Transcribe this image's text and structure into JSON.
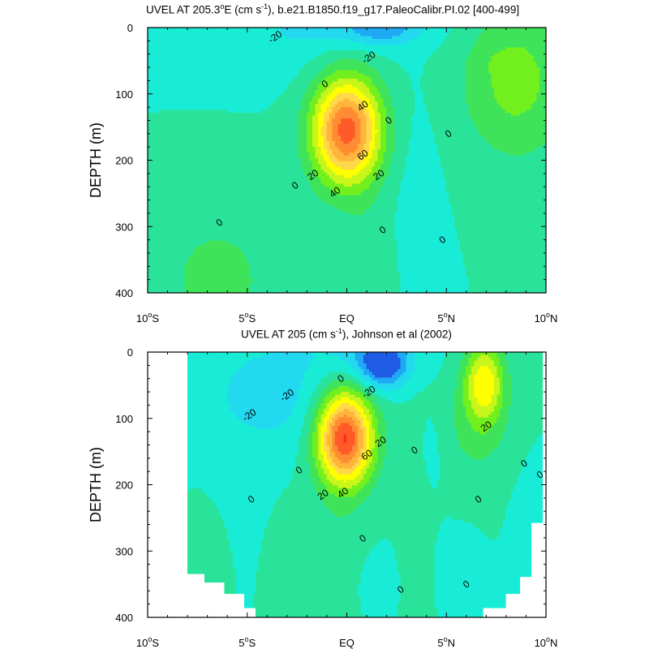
{
  "chart_data": [
    {
      "type": "heatmap",
      "subtype": "filled-contour",
      "title_parts": [
        "UVEL AT 205.3",
        "o",
        "E (cm s",
        "-1",
        "), b.e21.B1850.f19_g17.PaleoCalibr.PI.02 [400-499]"
      ],
      "ylabel": "DEPTH (m)",
      "ylim": [
        400,
        0
      ],
      "xlim": [
        -10,
        10
      ],
      "x_ticks": [
        {
          "v": -10,
          "n": "10",
          "s": "o",
          "h": "S"
        },
        {
          "v": -5,
          "n": "5",
          "s": "o",
          "h": "S"
        },
        {
          "v": 0,
          "n": "EQ",
          "s": "",
          "h": ""
        },
        {
          "v": 5,
          "n": "5",
          "s": "o",
          "h": "N"
        },
        {
          "v": 10,
          "n": "10",
          "s": "o",
          "h": "N"
        }
      ],
      "y_ticks": [
        "0",
        "100",
        "200",
        "300",
        "400"
      ],
      "contour_interval": 10,
      "contour_labels": [
        {
          "text": "-20",
          "x": -3.6,
          "y": 14
        },
        {
          "text": "-20",
          "x": 1.1,
          "y": 45
        },
        {
          "text": "0",
          "x": -1.1,
          "y": 85
        },
        {
          "text": "40",
          "x": 0.8,
          "y": 118
        },
        {
          "text": "0",
          "x": 2.1,
          "y": 140
        },
        {
          "text": "0",
          "x": 5.1,
          "y": 160
        },
        {
          "text": "60",
          "x": 0.8,
          "y": 192
        },
        {
          "text": "20",
          "x": -1.7,
          "y": 222
        },
        {
          "text": "20",
          "x": 1.6,
          "y": 222
        },
        {
          "text": "0",
          "x": -2.6,
          "y": 238
        },
        {
          "text": "40",
          "x": -0.6,
          "y": 248
        },
        {
          "text": "0",
          "x": -6.4,
          "y": 294
        },
        {
          "text": "0",
          "x": 1.8,
          "y": 305
        },
        {
          "text": "0",
          "x": 4.8,
          "y": 320
        }
      ]
    },
    {
      "type": "heatmap",
      "subtype": "filled-contour",
      "title_parts": [
        "UVEL AT 205 (cm s",
        "-1",
        "), Johnson et al (2002)"
      ],
      "ylabel": "DEPTH (m)",
      "ylim": [
        400,
        0
      ],
      "xlim": [
        -10,
        10
      ],
      "x_ticks": [
        {
          "v": -10,
          "n": "10",
          "s": "o",
          "h": "S"
        },
        {
          "v": -5,
          "n": "5",
          "s": "o",
          "h": "S"
        },
        {
          "v": 0,
          "n": "EQ",
          "s": "",
          "h": ""
        },
        {
          "v": 5,
          "n": "5",
          "s": "o",
          "h": "N"
        },
        {
          "v": 10,
          "n": "10",
          "s": "o",
          "h": "N"
        }
      ],
      "y_ticks": [
        "0",
        "100",
        "200",
        "300",
        "400"
      ],
      "contour_interval": 10,
      "contour_labels": [
        {
          "text": "0",
          "x": -0.3,
          "y": 40
        },
        {
          "text": "-20",
          "x": -3.0,
          "y": 65
        },
        {
          "text": "-20",
          "x": -4.9,
          "y": 95
        },
        {
          "text": "-20",
          "x": 1.1,
          "y": 60
        },
        {
          "text": "20",
          "x": 7.0,
          "y": 112
        },
        {
          "text": "20",
          "x": 1.7,
          "y": 135
        },
        {
          "text": "0",
          "x": 3.4,
          "y": 148
        },
        {
          "text": "60",
          "x": 1.0,
          "y": 155
        },
        {
          "text": "0",
          "x": -2.4,
          "y": 178
        },
        {
          "text": "0",
          "x": 9.7,
          "y": 185
        },
        {
          "text": "0",
          "x": 8.9,
          "y": 168
        },
        {
          "text": "20",
          "x": -1.2,
          "y": 215
        },
        {
          "text": "40",
          "x": -0.2,
          "y": 212
        },
        {
          "text": "0",
          "x": -4.8,
          "y": 222
        },
        {
          "text": "0",
          "x": 6.6,
          "y": 222
        },
        {
          "text": "0",
          "x": 0.8,
          "y": 281
        },
        {
          "text": "0",
          "x": 6.0,
          "y": 350
        },
        {
          "text": "0",
          "x": 2.7,
          "y": 358
        }
      ]
    }
  ],
  "colors": {
    "levels": [
      {
        "max": -30,
        "color": "#1f5ce6"
      },
      {
        "max": -20,
        "color": "#1fa8f4"
      },
      {
        "max": -10,
        "color": "#22d9f0"
      },
      {
        "max": 0,
        "color": "#19ecd6"
      },
      {
        "max": 10,
        "color": "#2ae39a"
      },
      {
        "max": 20,
        "color": "#3ee35a"
      },
      {
        "max": 30,
        "color": "#72f01e"
      },
      {
        "max": 40,
        "color": "#c8f51a"
      },
      {
        "max": 50,
        "color": "#ffff00"
      },
      {
        "max": 60,
        "color": "#ffd84a"
      },
      {
        "max": 70,
        "color": "#ffb43c"
      },
      {
        "max": 80,
        "color": "#ff8c32"
      },
      {
        "max": 90,
        "color": "#ff5a28"
      },
      {
        "max": 999,
        "color": "#ff2a1e"
      }
    ]
  }
}
